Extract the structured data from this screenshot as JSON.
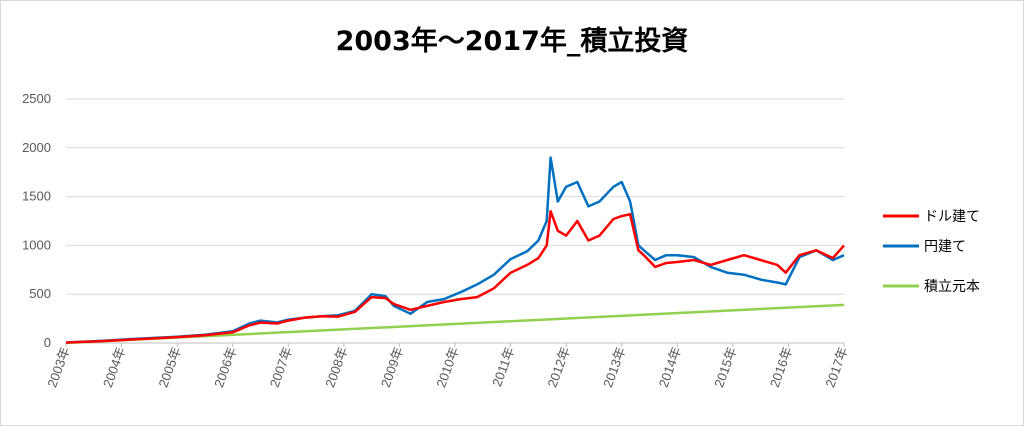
{
  "chart_data": {
    "type": "line",
    "title": "2003年～2017年_積立投資",
    "xlabel": "",
    "ylabel": "",
    "ylim": [
      0,
      2500
    ],
    "xlim": [
      2003,
      2017
    ],
    "y_ticks": [
      "0",
      "500",
      "1000",
      "1500",
      "2000",
      "2500"
    ],
    "x_ticks": [
      "2003年",
      "2004年",
      "2005年",
      "2006年",
      "2007年",
      "2008年",
      "2009年",
      "2010年",
      "2011年",
      "2012年",
      "2013年",
      "2014年",
      "2015年",
      "2016年",
      "2017年"
    ],
    "x_tick_values": [
      2003,
      2004,
      2005,
      2006,
      2007,
      2008,
      2009,
      2010,
      2011,
      2012,
      2013,
      2014,
      2015,
      2016,
      2017
    ],
    "grid": true,
    "legend_position": "right",
    "series": [
      {
        "name": "ドル建て",
        "color": "#ff0000",
        "x": [
          2003.0,
          2003.5,
          2004.0,
          2004.5,
          2005.0,
          2005.5,
          2006.0,
          2006.3,
          2006.5,
          2006.8,
          2007.0,
          2007.3,
          2007.6,
          2007.9,
          2008.2,
          2008.5,
          2008.75,
          2008.9,
          2009.2,
          2009.5,
          2009.8,
          2010.1,
          2010.4,
          2010.7,
          2011.0,
          2011.3,
          2011.5,
          2011.65,
          2011.72,
          2011.85,
          2012.0,
          2012.2,
          2012.4,
          2012.6,
          2012.85,
          2013.0,
          2013.15,
          2013.3,
          2013.4,
          2013.6,
          2013.8,
          2014.0,
          2014.3,
          2014.6,
          2014.9,
          2015.2,
          2015.5,
          2015.8,
          2015.95,
          2016.2,
          2016.5,
          2016.8,
          2017.0
        ],
        "values": [
          5,
          15,
          30,
          45,
          60,
          80,
          110,
          180,
          210,
          200,
          230,
          260,
          275,
          270,
          320,
          470,
          460,
          400,
          340,
          380,
          420,
          450,
          470,
          560,
          720,
          800,
          870,
          1000,
          1350,
          1150,
          1100,
          1250,
          1050,
          1100,
          1270,
          1300,
          1320,
          950,
          900,
          780,
          820,
          830,
          850,
          800,
          850,
          900,
          850,
          800,
          720,
          900,
          950,
          870,
          1000
        ]
      },
      {
        "name": "円建て",
        "color": "#0070c0",
        "x": [
          2003.0,
          2003.5,
          2004.0,
          2004.5,
          2005.0,
          2005.5,
          2006.0,
          2006.3,
          2006.5,
          2006.8,
          2007.0,
          2007.3,
          2007.6,
          2007.9,
          2008.2,
          2008.5,
          2008.75,
          2008.9,
          2009.2,
          2009.5,
          2009.8,
          2010.1,
          2010.4,
          2010.7,
          2011.0,
          2011.3,
          2011.5,
          2011.65,
          2011.72,
          2011.85,
          2012.0,
          2012.2,
          2012.4,
          2012.6,
          2012.85,
          2013.0,
          2013.15,
          2013.3,
          2013.4,
          2013.6,
          2013.8,
          2014.0,
          2014.3,
          2014.6,
          2014.9,
          2015.2,
          2015.5,
          2015.8,
          2015.95,
          2016.2,
          2016.5,
          2016.8,
          2017.0
        ],
        "values": [
          5,
          18,
          35,
          50,
          65,
          85,
          120,
          200,
          230,
          210,
          240,
          260,
          275,
          285,
          330,
          500,
          480,
          380,
          300,
          420,
          450,
          520,
          600,
          700,
          860,
          940,
          1050,
          1250,
          1900,
          1450,
          1600,
          1650,
          1400,
          1450,
          1600,
          1650,
          1450,
          1000,
          950,
          850,
          900,
          900,
          880,
          780,
          720,
          700,
          650,
          620,
          600,
          880,
          950,
          850,
          900
        ]
      },
      {
        "name": "積立元本",
        "color": "#92d050",
        "x": [
          2003.0,
          2017.0
        ],
        "values": [
          0,
          390
        ]
      }
    ]
  }
}
